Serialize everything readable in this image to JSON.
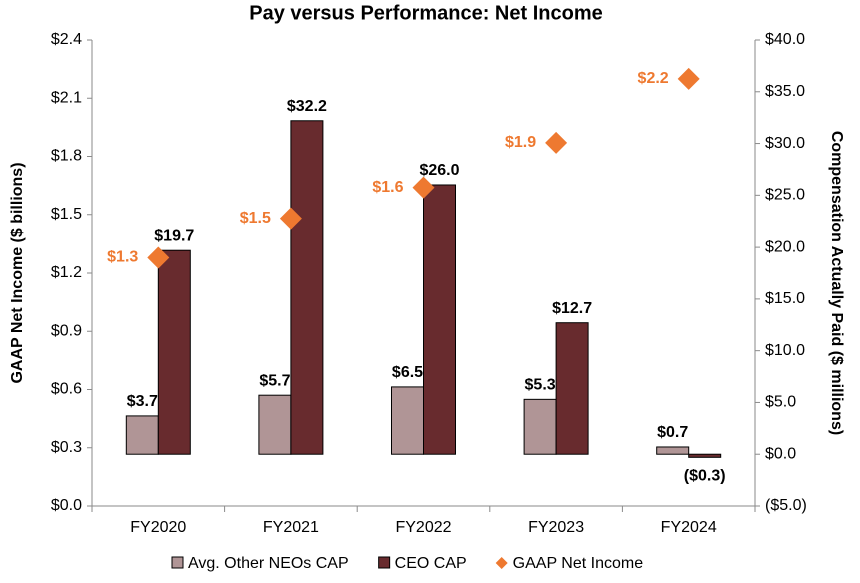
{
  "chart_data": {
    "type": "bar",
    "title": "Pay versus Performance: Net Income",
    "y_label": "GAAP Net Income ($ billions)",
    "y2_label": "Compensation Actually Paid ($ millions)",
    "categories": [
      "FY2020",
      "FY2021",
      "FY2022",
      "FY2023",
      "FY2024"
    ],
    "series": [
      {
        "name": "Avg. Other NEOs CAP",
        "type": "bar",
        "axis": "y2",
        "color": "#b09596",
        "values": [
          3.7,
          5.7,
          6.5,
          5.3,
          0.7
        ],
        "value_labels": [
          "$3.7",
          "$5.7",
          "$6.5",
          "$5.3",
          "$0.7"
        ],
        "label_color": "#000000"
      },
      {
        "name": "CEO CAP",
        "type": "bar",
        "axis": "y2",
        "color": "#682b2e",
        "values": [
          19.7,
          32.2,
          26.0,
          12.7,
          -0.3
        ],
        "value_labels": [
          "$19.7",
          "$32.2",
          "$26.0",
          "$12.7",
          "($0.3)"
        ],
        "label_color": "#000000"
      },
      {
        "name": "GAAP Net Income",
        "type": "scatter",
        "axis": "y",
        "color": "#ee7930",
        "values": [
          1.28,
          1.48,
          1.64,
          1.87,
          2.2
        ],
        "value_labels": [
          "$1.3",
          "$1.5",
          "$1.6",
          "$1.9",
          "$2.2"
        ],
        "label_color": "#ee7930"
      }
    ],
    "ylim": [
      0,
      2.4
    ],
    "yticks": [
      {
        "value": 0,
        "label": "$0.0"
      },
      {
        "value": 0.3,
        "label": "$0.3"
      },
      {
        "value": 0.6,
        "label": "$0.6"
      },
      {
        "value": 0.9,
        "label": "$0.9"
      },
      {
        "value": 1.2,
        "label": "$1.2"
      },
      {
        "value": 1.5,
        "label": "$1.5"
      },
      {
        "value": 1.8,
        "label": "$1.8"
      },
      {
        "value": 2.1,
        "label": "$2.1"
      },
      {
        "value": 2.4,
        "label": "$2.4"
      }
    ],
    "y2lim": [
      -5,
      40
    ],
    "y2ticks": [
      {
        "value": -5,
        "label": "($5.0)"
      },
      {
        "value": 0,
        "label": "$0.0"
      },
      {
        "value": 5,
        "label": "$5.0"
      },
      {
        "value": 10,
        "label": "$10.0"
      },
      {
        "value": 15,
        "label": "$15.0"
      },
      {
        "value": 20,
        "label": "$20.0"
      },
      {
        "value": 25,
        "label": "$25.0"
      },
      {
        "value": 30,
        "label": "$30.0"
      },
      {
        "value": 35,
        "label": "$35.0"
      },
      {
        "value": 40,
        "label": "$40.0"
      }
    ],
    "grid": false,
    "legend": "bottom"
  }
}
